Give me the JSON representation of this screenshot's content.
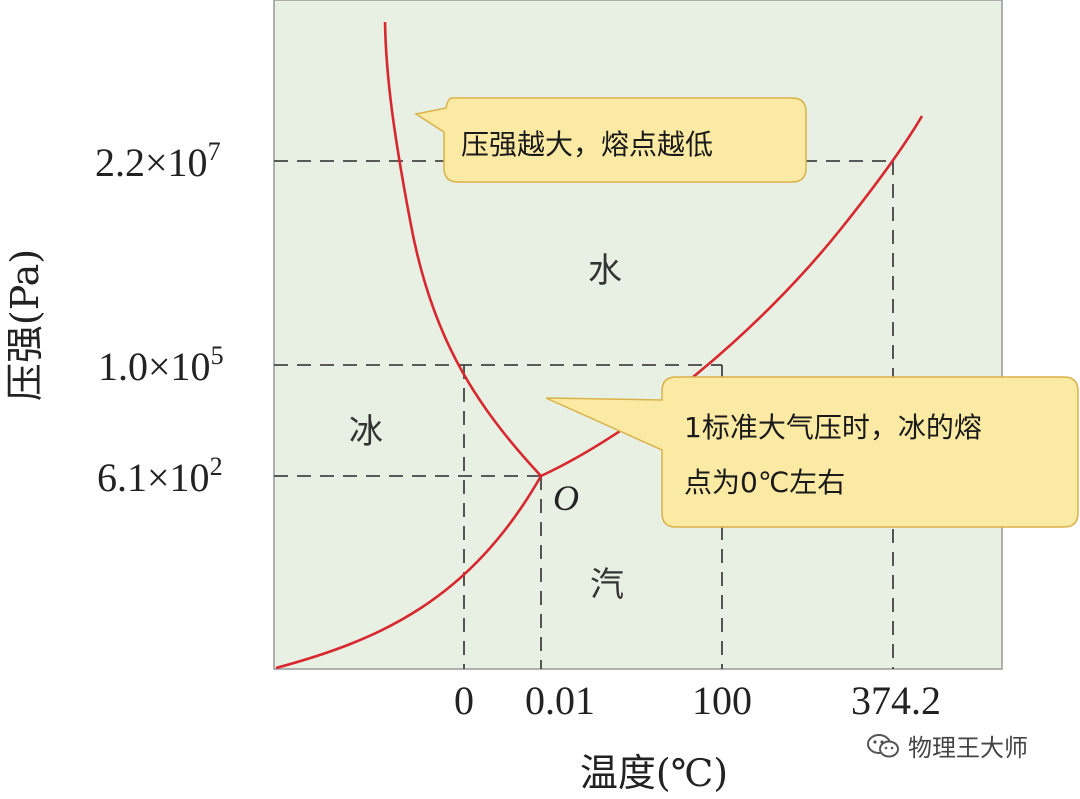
{
  "y_axis": {
    "title": "压强(Pa)",
    "ticks": [
      {
        "mantissa": "2.2×10",
        "exponent": "7"
      },
      {
        "mantissa": "1.0×10",
        "exponent": "5"
      },
      {
        "mantissa": "6.1×10",
        "exponent": "2"
      }
    ]
  },
  "x_axis": {
    "title": "温度(℃)",
    "ticks": [
      "0",
      "0.01",
      "100",
      "374.2"
    ]
  },
  "regions": {
    "water": "水",
    "ice": "冰",
    "vapor": "汽"
  },
  "point_label": "O",
  "callouts": {
    "top": "压强越大，熔点越低",
    "right_line1": "1标准大气压时，冰的熔",
    "right_line2": "点为0℃左右"
  },
  "watermark": "物理王大师",
  "colors": {
    "plot_background": "#e8efe3",
    "curve": "#d8282f",
    "callout_fill": "#fbeaa4",
    "callout_stroke": "#d9b24a",
    "grid_dash": "#444444"
  }
}
